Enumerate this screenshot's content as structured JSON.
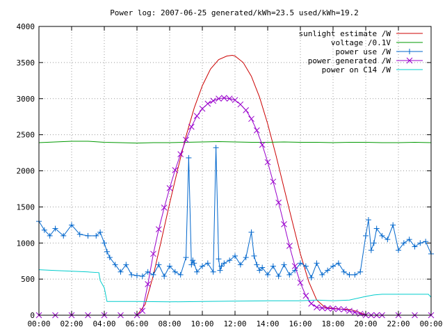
{
  "chart_data": {
    "type": "line",
    "title": "Power log: 2007-06-25 generated/kWh=23.5 used/kWh=19.2",
    "xlabel": "",
    "ylabel": "",
    "xlim": [
      "00:00",
      "24:00"
    ],
    "ylim": [
      0,
      4000
    ],
    "grid": true,
    "legend_position": "top-right",
    "x_tick_labels": [
      "00:00",
      "02:00",
      "04:00",
      "06:00",
      "08:00",
      "10:00",
      "12:00",
      "14:00",
      "16:00",
      "18:00",
      "20:00",
      "22:00",
      "00:00"
    ],
    "y_tick_labels": [
      "0",
      "500",
      "1000",
      "1500",
      "2000",
      "2500",
      "3000",
      "3500",
      "4000"
    ],
    "y_ticks": [
      0,
      500,
      1000,
      1500,
      2000,
      2500,
      3000,
      3500,
      4000
    ],
    "series": [
      {
        "name": "sunlight estimate /W",
        "color": "#cc0000",
        "style": "line",
        "x": [
          "06:00",
          "06:30",
          "07:00",
          "07:30",
          "08:00",
          "08:30",
          "09:00",
          "09:30",
          "10:00",
          "10:30",
          "11:00",
          "11:30",
          "11:50",
          "12:00",
          "12:30",
          "13:00",
          "13:30",
          "14:00",
          "14:30",
          "15:00",
          "15:30",
          "16:00",
          "16:30",
          "17:00",
          "17:30",
          "18:00",
          "18:30",
          "19:00",
          "19:30",
          "20:00",
          "20:30"
        ],
        "values": [
          0,
          150,
          550,
          1050,
          1550,
          2030,
          2480,
          2870,
          3180,
          3410,
          3540,
          3590,
          3600,
          3590,
          3500,
          3310,
          3020,
          2650,
          2220,
          1760,
          1300,
          850,
          470,
          210,
          110,
          95,
          85,
          80,
          50,
          0,
          0
        ]
      },
      {
        "name": "voltage /0.1V",
        "color": "#009900",
        "style": "line",
        "x": [
          "00:00",
          "01:00",
          "02:00",
          "03:00",
          "04:00",
          "05:00",
          "06:00",
          "07:00",
          "08:00",
          "09:00",
          "10:00",
          "11:00",
          "12:00",
          "13:00",
          "14:00",
          "15:00",
          "16:00",
          "17:00",
          "18:00",
          "19:00",
          "20:00",
          "21:00",
          "22:00",
          "23:00",
          "24:00"
        ],
        "values": [
          2390,
          2400,
          2410,
          2410,
          2395,
          2390,
          2385,
          2390,
          2390,
          2395,
          2400,
          2405,
          2400,
          2395,
          2395,
          2400,
          2395,
          2395,
          2390,
          2395,
          2395,
          2390,
          2390,
          2395,
          2390
        ]
      },
      {
        "name": "power use /W",
        "color": "#0066cc",
        "style": "line-points-plus",
        "x": [
          "00:00",
          "00:20",
          "00:40",
          "01:00",
          "01:30",
          "02:00",
          "02:30",
          "03:00",
          "03:30",
          "03:45",
          "04:00",
          "04:10",
          "04:20",
          "04:40",
          "05:00",
          "05:20",
          "05:40",
          "06:00",
          "06:20",
          "06:40",
          "07:00",
          "07:20",
          "07:40",
          "08:00",
          "08:20",
          "08:40",
          "09:00",
          "09:10",
          "09:20",
          "09:25",
          "09:30",
          "09:40",
          "10:00",
          "10:20",
          "10:40",
          "10:50",
          "11:00",
          "11:05",
          "11:10",
          "11:20",
          "11:40",
          "12:00",
          "12:20",
          "12:40",
          "13:00",
          "13:10",
          "13:20",
          "13:30",
          "13:40",
          "14:00",
          "14:20",
          "14:40",
          "15:00",
          "15:20",
          "15:40",
          "16:00",
          "16:20",
          "16:40",
          "17:00",
          "17:20",
          "17:40",
          "18:00",
          "18:20",
          "18:40",
          "19:00",
          "19:20",
          "19:40",
          "20:00",
          "20:10",
          "20:20",
          "20:30",
          "20:40",
          "21:00",
          "21:20",
          "21:40",
          "22:00",
          "22:20",
          "22:40",
          "23:00",
          "23:20",
          "23:40",
          "24:00"
        ],
        "values": [
          1300,
          1180,
          1100,
          1200,
          1100,
          1250,
          1120,
          1100,
          1100,
          1150,
          1000,
          880,
          800,
          700,
          600,
          700,
          560,
          550,
          540,
          600,
          560,
          700,
          540,
          680,
          600,
          560,
          800,
          2180,
          700,
          760,
          720,
          600,
          680,
          720,
          600,
          2320,
          780,
          620,
          680,
          720,
          760,
          820,
          700,
          800,
          1150,
          820,
          700,
          620,
          660,
          560,
          680,
          540,
          700,
          560,
          620,
          720,
          680,
          520,
          720,
          560,
          620,
          680,
          720,
          600,
          560,
          560,
          600,
          1100,
          1320,
          900,
          1000,
          1200,
          1100,
          1050,
          1250,
          900,
          1000,
          1050,
          950,
          1000,
          1020,
          850
        ]
      },
      {
        "name": "power generated /W",
        "color": "#9900cc",
        "style": "line-points-cross",
        "x": [
          "00:00",
          "01:00",
          "02:00",
          "03:00",
          "04:00",
          "05:00",
          "06:00",
          "06:20",
          "06:40",
          "07:00",
          "07:20",
          "07:40",
          "08:00",
          "08:20",
          "08:40",
          "09:00",
          "09:20",
          "09:40",
          "10:00",
          "10:20",
          "10:40",
          "11:00",
          "11:20",
          "11:40",
          "12:00",
          "12:20",
          "12:40",
          "13:00",
          "13:20",
          "13:40",
          "14:00",
          "14:20",
          "14:40",
          "15:00",
          "15:20",
          "15:40",
          "16:00",
          "16:20",
          "16:40",
          "17:00",
          "17:20",
          "17:40",
          "18:00",
          "18:20",
          "18:40",
          "19:00",
          "19:20",
          "19:40",
          "20:00",
          "20:20",
          "20:40",
          "21:00",
          "22:00",
          "23:00",
          "24:00"
        ],
        "values": [
          0,
          0,
          0,
          0,
          0,
          0,
          0,
          60,
          430,
          850,
          1190,
          1490,
          1760,
          2010,
          2230,
          2430,
          2610,
          2760,
          2860,
          2930,
          2970,
          3000,
          3010,
          3000,
          2980,
          2920,
          2840,
          2720,
          2560,
          2360,
          2120,
          1850,
          1560,
          1260,
          960,
          680,
          450,
          270,
          160,
          110,
          100,
          95,
          90,
          85,
          80,
          60,
          40,
          20,
          0,
          0,
          0,
          0,
          0,
          0,
          0
        ]
      },
      {
        "name": "power on C14 /W",
        "color": "#00cccc",
        "style": "line",
        "x": [
          "00:00",
          "01:00",
          "02:00",
          "03:00",
          "03:40",
          "03:45",
          "04:00",
          "04:10",
          "05:00",
          "06:00",
          "08:00",
          "10:00",
          "12:00",
          "14:00",
          "16:00",
          "17:00",
          "18:00",
          "19:00",
          "20:00",
          "20:30",
          "21:00",
          "22:00",
          "23:00",
          "23:50",
          "24:00"
        ],
        "values": [
          630,
          620,
          610,
          600,
          590,
          480,
          380,
          190,
          190,
          190,
          185,
          190,
          195,
          200,
          200,
          210,
          200,
          210,
          260,
          280,
          290,
          290,
          290,
          290,
          250
        ]
      }
    ]
  }
}
